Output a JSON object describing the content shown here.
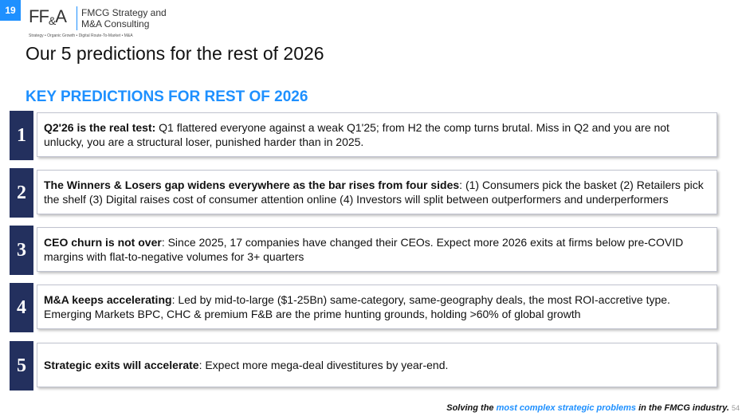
{
  "slide_number": "19",
  "logo": {
    "mark_ff": "FF",
    "mark_amp": "&",
    "mark_a": "A",
    "name_line1": "FMCG Strategy and",
    "name_line2": "M&A Consulting",
    "tagline": "Strategy • Organic Growth • Digital Route-To-Market • M&A"
  },
  "title": "Our 5 predictions for the rest of 2026",
  "section_title": "KEY PREDICTIONS FOR REST OF 2026",
  "predictions": [
    {
      "number": "1",
      "lead": "Q2'26 is the real test:",
      "text": " Q1 flattered everyone against a weak Q1'25; from H2 the comp turns brutal. Miss in Q2 and you are not unlucky, you are a structural loser, punished harder than in 2025."
    },
    {
      "number": "2",
      "lead": "The Winners & Losers gap widens everywhere as the bar rises from four sides",
      "text": ": (1) Consumers pick the basket (2) Retailers pick the shelf (3) Digital raises cost of consumer attention online (4) Investors will split between outperformers and underperformers"
    },
    {
      "number": "3",
      "lead": "CEO churn is not over",
      "text": ": Since 2025, 17 companies have changed their CEOs. Expect more 2026 exits at firms below pre-COVID margins with flat-to-negative volumes for 3+ quarters"
    },
    {
      "number": "4",
      "lead": "M&A keeps accelerating",
      "text": ": Led by mid-to-large ($1-25Bn) same-category, same-geography deals, the most ROI-accretive type. Emerging Markets BPC, CHC & premium F&B are the prime hunting grounds, holding >60% of global growth"
    },
    {
      "number": "5",
      "lead": "Strategic exits will accelerate",
      "text": ": Expect more mega-deal divestitures by year-end."
    }
  ],
  "footer": {
    "pre": "Solving the ",
    "highlight": "most complex strategic problems",
    "post": " in the FMCG industry.",
    "page": "54"
  },
  "colors": {
    "accent": "#1e90ff",
    "number_bg": "#23305e"
  }
}
